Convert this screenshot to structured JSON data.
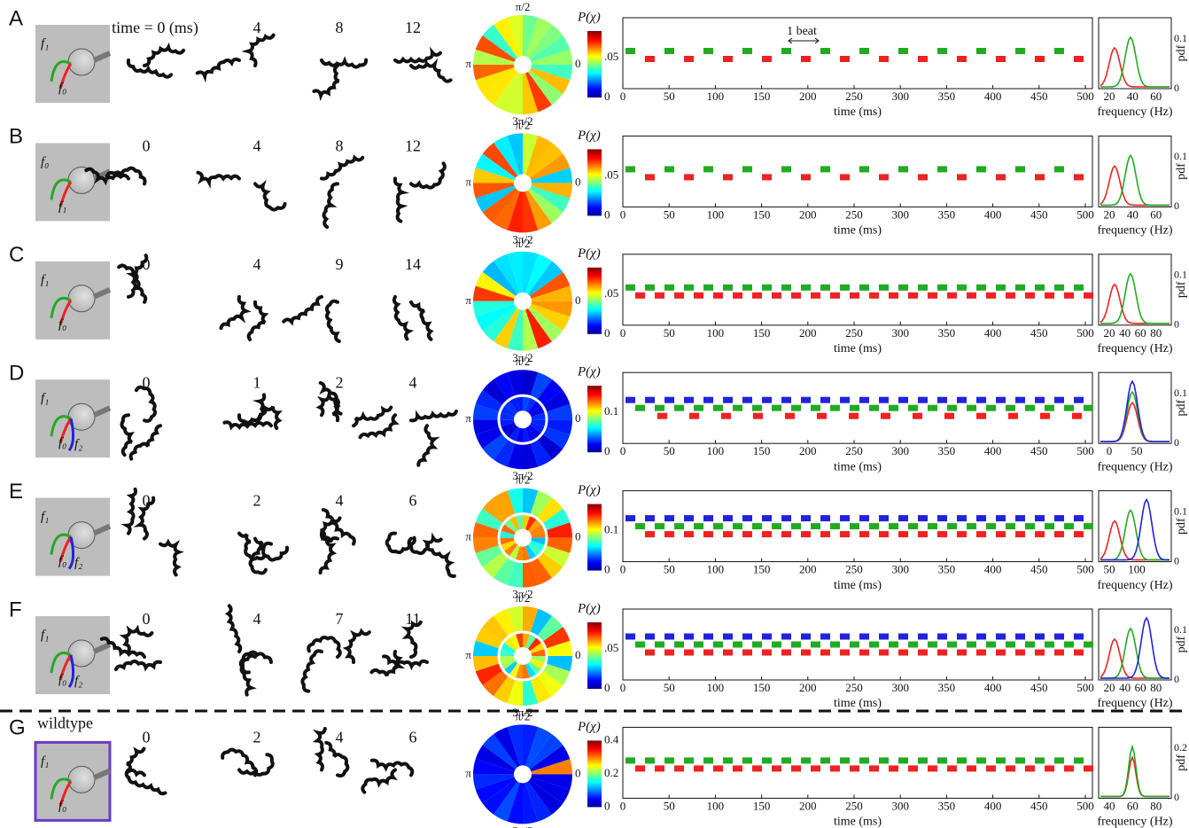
{
  "polar_labels": [
    "π/2",
    "π",
    "0",
    "3π/2"
  ],
  "colorbar_label": "P(χ)",
  "raster_xticks": [
    "0",
    "50",
    "100",
    "150",
    "200",
    "250",
    "300",
    "350",
    "400",
    "450",
    "500"
  ],
  "raster_xlabel": "time (ms)",
  "pdf_xlabel": "frequency (Hz)",
  "pdf_ylabel": "pdf",
  "beat_annotation": "1 beat",
  "wildtype_label": "wildtype",
  "rows": [
    {
      "label": "A",
      "cell_labels": [
        "f₁",
        "f₀"
      ],
      "times": [
        "time = 0 (ms)",
        "4",
        "8",
        "12"
      ],
      "colorbar_ticks": [
        "0",
        ".05"
      ],
      "raster_colors": [
        "#22aa22",
        "#ee2222"
      ],
      "pdf_xticks": [
        "20",
        "40",
        "60"
      ],
      "pdf_yticks": [
        "0",
        "0.1"
      ],
      "rings": 1
    },
    {
      "label": "B",
      "cell_labels": [
        "f₀",
        "f₁"
      ],
      "times": [
        "0",
        "4",
        "8",
        "12"
      ],
      "colorbar_ticks": [
        "0",
        ".05"
      ],
      "raster_colors": [
        "#22aa22",
        "#ee2222"
      ],
      "pdf_xticks": [
        "20",
        "40",
        "60"
      ],
      "pdf_yticks": [
        "0",
        "0.1"
      ],
      "rings": 1
    },
    {
      "label": "C",
      "cell_labels": [
        "f₁",
        "f₀"
      ],
      "times": [
        "0",
        "4",
        "9",
        "14"
      ],
      "colorbar_ticks": [
        "0",
        ".05"
      ],
      "raster_colors": [
        "#22aa22",
        "#ee2222"
      ],
      "pdf_xticks": [
        "20",
        "40",
        "60",
        "80"
      ],
      "pdf_yticks": [
        "0",
        "0.1"
      ],
      "rings": 1
    },
    {
      "label": "D",
      "cell_labels": [
        "f₁",
        "f₀",
        "f₂"
      ],
      "times": [
        "0",
        "1",
        "2",
        "4"
      ],
      "colorbar_ticks": [
        "0",
        "0.1"
      ],
      "raster_colors": [
        "#2222dd",
        "#22aa22",
        "#ee2222"
      ],
      "pdf_xticks": [
        "0",
        "50"
      ],
      "pdf_yticks": [
        "0",
        "0.1"
      ],
      "rings": 2
    },
    {
      "label": "E",
      "cell_labels": [
        "f₁",
        "f₀",
        "f₂"
      ],
      "times": [
        "0",
        "2",
        "4",
        "6"
      ],
      "colorbar_ticks": [
        "0",
        "0.1"
      ],
      "raster_colors": [
        "#2222dd",
        "#22aa22",
        "#ee2222"
      ],
      "pdf_xticks": [
        "50",
        "100"
      ],
      "pdf_yticks": [
        "0",
        "0.1"
      ],
      "rings": 2
    },
    {
      "label": "F",
      "cell_labels": [
        "f₁",
        "f₀",
        "f₂"
      ],
      "times": [
        "0",
        "4",
        "7",
        "11"
      ],
      "colorbar_ticks": [
        "0",
        ".05"
      ],
      "raster_colors": [
        "#2222dd",
        "#22aa22",
        "#ee2222"
      ],
      "pdf_xticks": [
        "20",
        "40",
        "60",
        "80"
      ],
      "pdf_yticks": [
        "0",
        "0.1"
      ],
      "rings": 2
    },
    {
      "label": "G",
      "cell_labels": [
        "f₁",
        "f₀"
      ],
      "times": [
        "0",
        "2",
        "4",
        "6"
      ],
      "colorbar_ticks": [
        "0",
        "0.2",
        "0.4"
      ],
      "raster_colors": [
        "#22aa22",
        "#ee2222"
      ],
      "pdf_xticks": [
        "40",
        "60",
        "80"
      ],
      "pdf_yticks": [
        "0",
        "0.2"
      ],
      "rings": 1
    }
  ]
}
